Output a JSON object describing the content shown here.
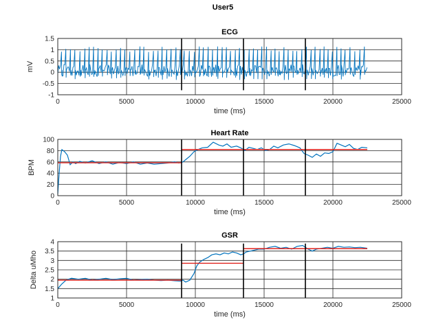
{
  "figure": {
    "title": "User5"
  },
  "chart_data": [
    {
      "id": "ecg",
      "type": "line",
      "title": "ECG",
      "xlabel": "time (ms)",
      "ylabel": "mV",
      "xlim": [
        0,
        25000
      ],
      "ylim": [
        -1,
        1.5
      ],
      "xticks": [
        0,
        5000,
        10000,
        15000,
        20000,
        25000
      ],
      "yticks": [
        -1,
        -0.5,
        0,
        0.5,
        1,
        1.5
      ],
      "ytick_labels": [
        "-1",
        "-0.5",
        "0",
        "0.5",
        "1",
        "1.5"
      ],
      "grid": true,
      "series_color": "#0072BD",
      "series_range": [
        0,
        22500
      ],
      "baseline_mv": 0.1,
      "band_mv": [
        -0.2,
        0.35
      ],
      "r_peak_mv": [
        0.9,
        1.15
      ],
      "dip_mv": -0.35,
      "beat_interval_ms": 330,
      "segment_markers": [
        9000,
        13500,
        18000
      ],
      "segment_marker_range": [
        -0.8,
        1.5
      ],
      "mean_lines": []
    },
    {
      "id": "hr",
      "type": "line",
      "title": "Heart Rate",
      "xlabel": "time (ms)",
      "ylabel": "BPM",
      "xlim": [
        0,
        25000
      ],
      "ylim": [
        0,
        100
      ],
      "xticks": [
        0,
        5000,
        10000,
        15000,
        20000,
        25000
      ],
      "yticks": [
        0,
        20,
        40,
        60,
        80,
        100
      ],
      "ytick_labels": [
        "0",
        "20",
        "40",
        "60",
        "80",
        "100"
      ],
      "grid": true,
      "series_color": "#0072BD",
      "series": {
        "x": [
          0,
          100,
          200,
          300,
          500,
          700,
          900,
          1100,
          1300,
          1600,
          2000,
          2500,
          3000,
          3500,
          4000,
          4500,
          5000,
          5500,
          6000,
          6500,
          7000,
          7500,
          8000,
          8500,
          8800,
          9100,
          9300,
          9600,
          9900,
          10200,
          10500,
          10900,
          11300,
          11700,
          12000,
          12300,
          12600,
          13000,
          13300,
          13600,
          13900,
          14200,
          14500,
          14800,
          15100,
          15400,
          15700,
          16000,
          16400,
          16800,
          17200,
          17600,
          17900,
          18200,
          18500,
          18800,
          19100,
          19400,
          19700,
          20000,
          20300,
          20600,
          20900,
          21200,
          21500,
          21800,
          22100,
          22500
        ],
        "y": [
          3,
          40,
          70,
          82,
          78,
          72,
          55,
          60,
          57,
          61,
          58,
          62,
          57,
          60,
          56,
          59,
          57,
          60,
          56,
          58,
          56,
          57,
          58,
          60,
          58,
          60,
          64,
          70,
          78,
          82,
          85,
          86,
          95,
          90,
          88,
          92,
          86,
          88,
          85,
          80,
          86,
          84,
          82,
          85,
          80,
          82,
          88,
          85,
          90,
          92,
          89,
          85,
          75,
          72,
          68,
          74,
          70,
          76,
          75,
          78,
          93,
          90,
          87,
          91,
          84,
          82,
          86,
          85
        ]
      },
      "segment_markers": [
        9000,
        13500,
        18000
      ],
      "segment_marker_range": [
        0,
        100
      ],
      "mean_lines": [
        {
          "x": [
            0,
            9000
          ],
          "y": 58.5
        },
        {
          "x": [
            9000,
            22500
          ],
          "y": 82
        }
      ]
    },
    {
      "id": "gsr",
      "type": "line",
      "title": "GSR",
      "xlabel": "time (ms)",
      "ylabel": "Delta uMho",
      "xlim": [
        0,
        25000
      ],
      "ylim": [
        1,
        4
      ],
      "xticks": [
        0,
        5000,
        10000,
        15000,
        20000,
        25000
      ],
      "yticks": [
        1,
        1.5,
        2,
        2.5,
        3,
        3.5,
        4
      ],
      "ytick_labels": [
        "1",
        "1.5",
        "2",
        "2.5",
        "3",
        "3.5",
        "4"
      ],
      "grid": true,
      "series_color": "#0072BD",
      "series": {
        "x": [
          0,
          300,
          600,
          1000,
          1500,
          2000,
          2500,
          3000,
          3500,
          4000,
          4500,
          5000,
          5500,
          6000,
          6500,
          7000,
          7500,
          8000,
          8500,
          8900,
          9100,
          9300,
          9600,
          9900,
          10100,
          10300,
          10600,
          10900,
          11200,
          11500,
          11800,
          12100,
          12400,
          12700,
          13000,
          13300,
          13500,
          13700,
          14000,
          14300,
          14600,
          15000,
          15400,
          15800,
          16200,
          16600,
          17000,
          17400,
          17800,
          18200,
          18500,
          18800,
          19200,
          19600,
          20000,
          20400,
          20800,
          21200,
          21600,
          22000,
          22500
        ],
        "y": [
          1.5,
          1.75,
          1.95,
          2.05,
          2.0,
          2.05,
          1.95,
          2.0,
          2.05,
          1.98,
          2.02,
          2.05,
          1.95,
          1.98,
          2.0,
          1.95,
          1.93,
          1.95,
          1.92,
          1.9,
          1.95,
          1.85,
          1.95,
          2.3,
          2.7,
          2.9,
          3.05,
          3.15,
          3.3,
          3.35,
          3.3,
          3.4,
          3.35,
          3.45,
          3.4,
          3.3,
          3.35,
          3.45,
          3.5,
          3.55,
          3.6,
          3.6,
          3.7,
          3.75,
          3.65,
          3.7,
          3.6,
          3.75,
          3.8,
          3.6,
          3.5,
          3.6,
          3.65,
          3.7,
          3.65,
          3.75,
          3.7,
          3.72,
          3.68,
          3.7,
          3.65
        ]
      },
      "segment_markers": [
        9000,
        13500,
        18000
      ],
      "segment_marker_range": [
        1,
        3.9
      ],
      "mean_lines": [
        {
          "x": [
            0,
            9000
          ],
          "y": 1.95
        },
        {
          "x": [
            9000,
            13500
          ],
          "y": 2.85
        },
        {
          "x": [
            13500,
            22500
          ],
          "y": 3.63
        }
      ]
    }
  ],
  "colors": {
    "series": "#0072BD",
    "mean_line": "#E0201B",
    "segment_marker": "#000000",
    "grid": "#262626",
    "axes": "#262626"
  }
}
